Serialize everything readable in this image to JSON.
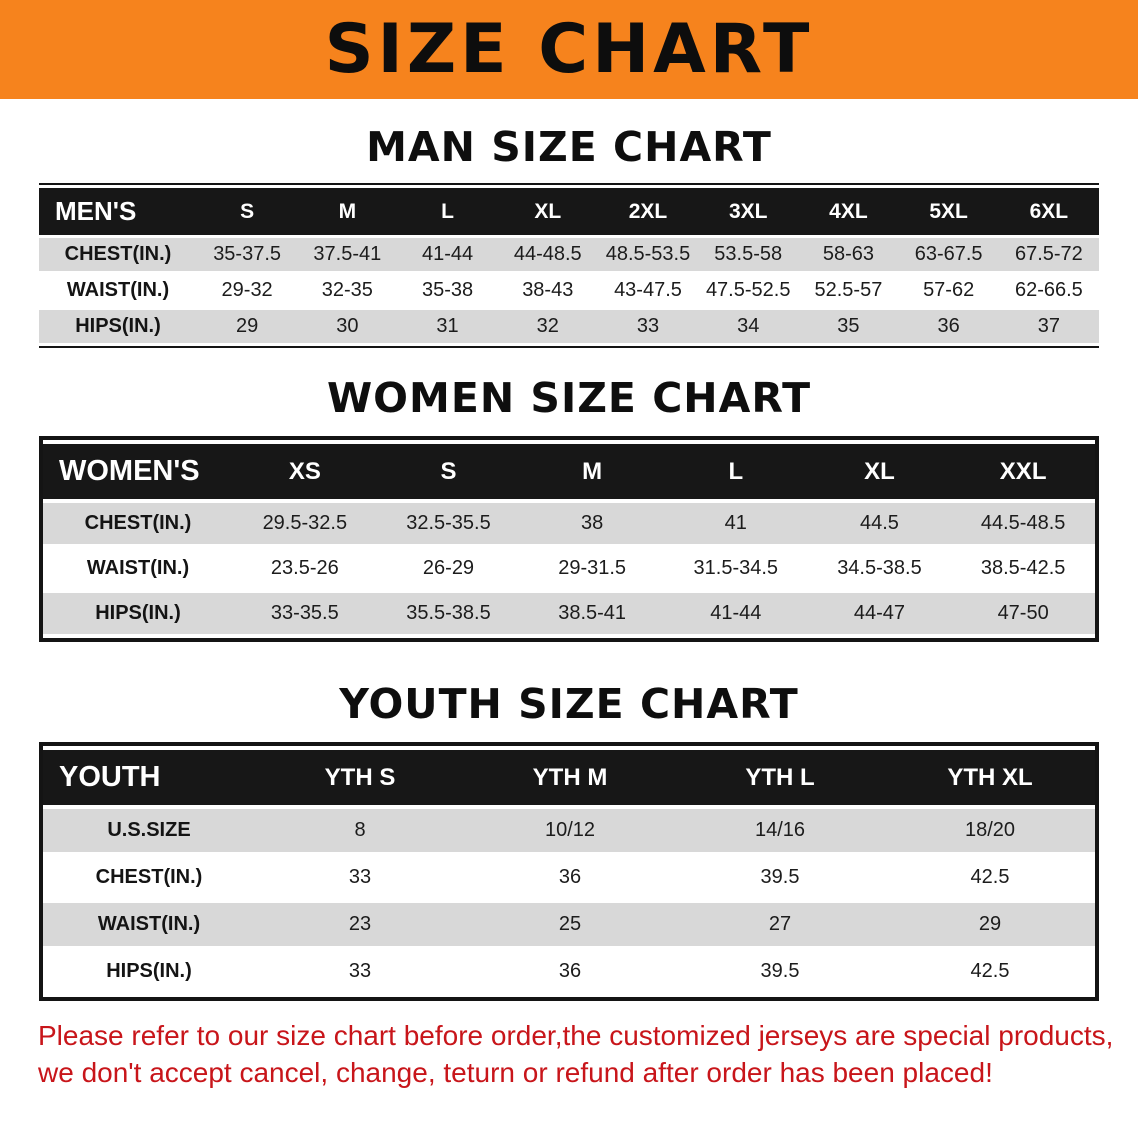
{
  "banner": {
    "title": "SIZE CHART",
    "bg_color": "#f6831d"
  },
  "sections": {
    "men": {
      "heading": "MAN SIZE CHART",
      "table": {
        "header": [
          "MEN'S",
          "S",
          "M",
          "L",
          "XL",
          "2XL",
          "3XL",
          "4XL",
          "5XL",
          "6XL"
        ],
        "rows": [
          {
            "label": "CHEST(IN.)",
            "values": [
              "35-37.5",
              "37.5-41",
              "41-44",
              "44-48.5",
              "48.5-53.5",
              "53.5-58",
              "58-63",
              "63-67.5",
              "67.5-72"
            ]
          },
          {
            "label": "WAIST(IN.)",
            "values": [
              "29-32",
              "32-35",
              "35-38",
              "38-43",
              "43-47.5",
              "47.5-52.5",
              "52.5-57",
              "57-62",
              "62-66.5"
            ]
          },
          {
            "label": "HIPS(IN.)",
            "values": [
              "29",
              "30",
              "31",
              "32",
              "33",
              "34",
              "35",
              "36",
              "37"
            ]
          }
        ]
      }
    },
    "women": {
      "heading": "WOMEN SIZE CHART",
      "table": {
        "header": [
          "WOMEN'S",
          "XS",
          "S",
          "M",
          "L",
          "XL",
          "XXL"
        ],
        "rows": [
          {
            "label": "CHEST(IN.)",
            "values": [
              "29.5-32.5",
              "32.5-35.5",
              "38",
              "41",
              "44.5",
              "44.5-48.5"
            ]
          },
          {
            "label": "WAIST(IN.)",
            "values": [
              "23.5-26",
              "26-29",
              "29-31.5",
              "31.5-34.5",
              "34.5-38.5",
              "38.5-42.5"
            ]
          },
          {
            "label": "HIPS(IN.)",
            "values": [
              "33-35.5",
              "35.5-38.5",
              "38.5-41",
              "41-44",
              "44-47",
              "47-50"
            ]
          }
        ]
      }
    },
    "youth": {
      "heading": "YOUTH SIZE CHART",
      "table": {
        "header": [
          "YOUTH",
          "YTH S",
          "YTH M",
          "YTH L",
          "YTH XL"
        ],
        "rows": [
          {
            "label": "U.S.SIZE",
            "values": [
              "8",
              "10/12",
              "14/16",
              "18/20"
            ]
          },
          {
            "label": "CHEST(IN.)",
            "values": [
              "33",
              "36",
              "39.5",
              "42.5"
            ]
          },
          {
            "label": "WAIST(IN.)",
            "values": [
              "23",
              "25",
              "27",
              "29"
            ]
          },
          {
            "label": "HIPS(IN.)",
            "values": [
              "33",
              "36",
              "39.5",
              "42.5"
            ]
          }
        ]
      }
    }
  },
  "notice": {
    "line1": "Please refer to our size chart before order,the customized jerseys are special products,",
    "line2": "we don't accept cancel, change, teturn or refund after order has been placed!",
    "text_color": "#c8151a"
  }
}
